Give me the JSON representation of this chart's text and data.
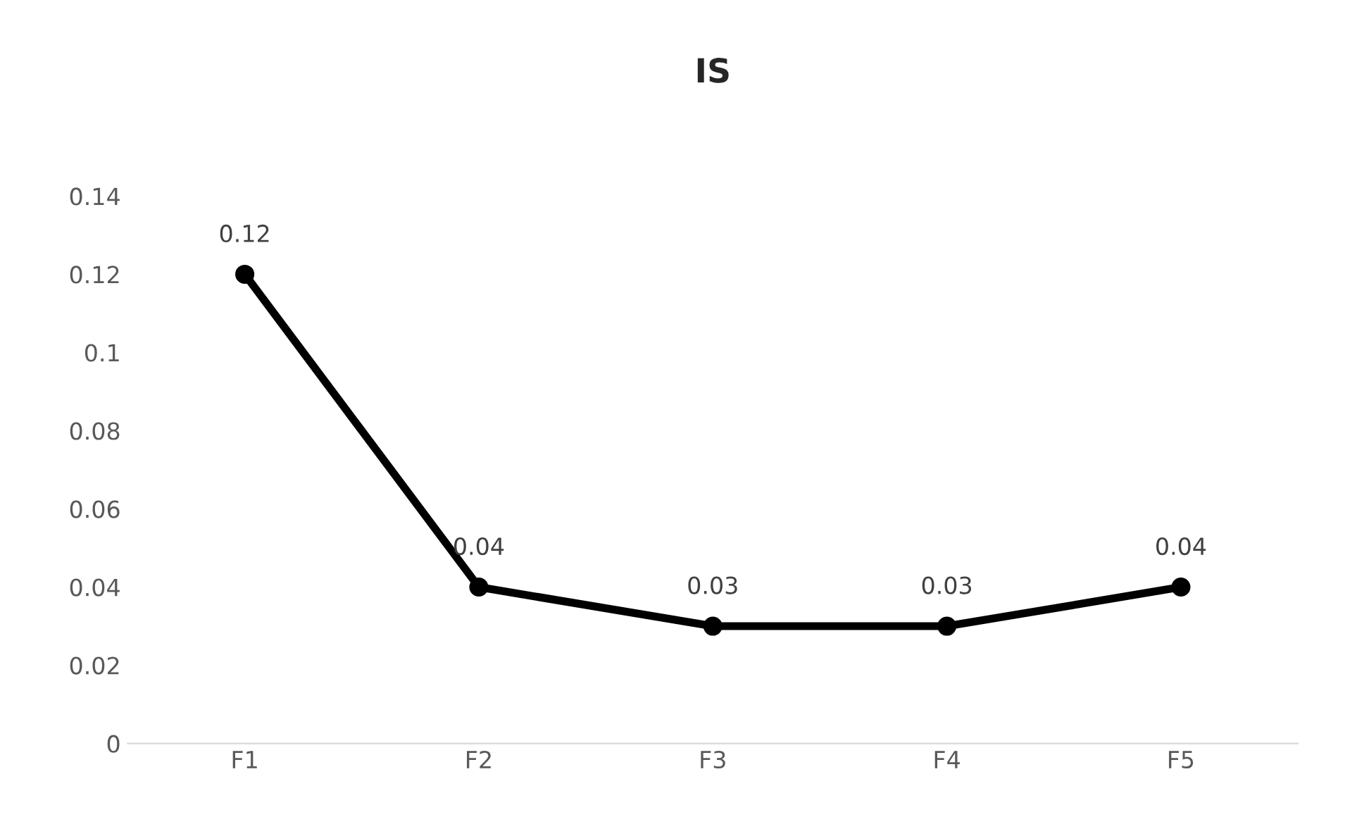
{
  "chart_data": {
    "type": "line",
    "title": "IS",
    "categories": [
      "F1",
      "F2",
      "F3",
      "F4",
      "F5"
    ],
    "series": [
      {
        "color": "#000000",
        "values": [
          0.12,
          0.04,
          0.03,
          0.03,
          0.04
        ]
      }
    ],
    "ylim": [
      0,
      0.14
    ],
    "yticks": [
      0,
      0.02,
      0.04,
      0.06,
      0.08,
      0.1,
      0.12,
      0.14
    ],
    "grid": false,
    "marker": "circle",
    "line_style": "solid",
    "data_labels": true
  }
}
